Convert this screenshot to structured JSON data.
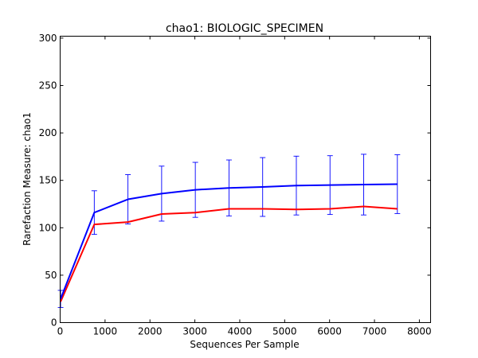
{
  "chart_data": {
    "type": "line",
    "title": "chao1: BIOLOGIC_SPECIMEN",
    "xlabel": "Sequences Per Sample",
    "ylabel": "Rarefaction Measure: chao1",
    "xlim": [
      0,
      8250
    ],
    "ylim": [
      0,
      302
    ],
    "xticks": [
      0,
      1000,
      2000,
      3000,
      4000,
      5000,
      6000,
      7000,
      8000
    ],
    "yticks": [
      0,
      50,
      100,
      150,
      200,
      250,
      300
    ],
    "grid": false,
    "series": [
      {
        "color": "#0000ff",
        "x": [
          10,
          760,
          1510,
          2260,
          3010,
          3760,
          4510,
          5260,
          6010,
          6760,
          7510
        ],
        "y": [
          25,
          116,
          130,
          136,
          140,
          142,
          143,
          144.5,
          145,
          145.5,
          146
        ],
        "error": [
          9,
          23,
          26,
          29,
          29,
          29.5,
          31,
          31,
          31,
          32,
          31
        ]
      },
      {
        "color": "#ff0000",
        "x": [
          10,
          760,
          1510,
          2260,
          3010,
          3760,
          4510,
          5260,
          6010,
          6760,
          7510
        ],
        "y": [
          22,
          103.5,
          106,
          114.5,
          116,
          120,
          120,
          119.3,
          120,
          122.5,
          120
        ]
      }
    ]
  }
}
